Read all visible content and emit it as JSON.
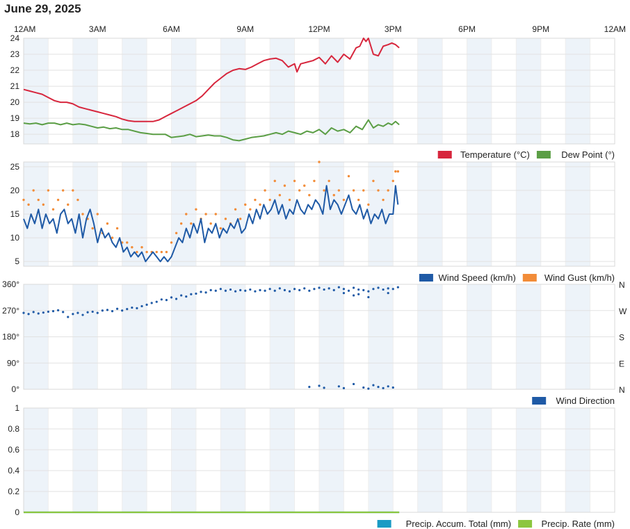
{
  "page": {
    "title": "June 29, 2025"
  },
  "time_axis": {
    "labels": [
      "12AM",
      "3AM",
      "6AM",
      "9AM",
      "12PM",
      "3PM",
      "6PM",
      "9PM",
      "12AM"
    ]
  },
  "colors": {
    "temperature": "#d7263d",
    "dew_point": "#5b9e45",
    "wind_speed": "#1f5aa6",
    "wind_gust": "#f28c38",
    "wind_direction": "#1f5aa6",
    "precip_total": "#1a9bc4",
    "precip_rate": "#8cc63f",
    "band": "#edf3f9",
    "grid": "#e2e2e2"
  },
  "chart_data": [
    {
      "type": "line",
      "x_unit": "hours since 12AM",
      "xlim": [
        0,
        24
      ],
      "ylim": [
        17.4,
        24
      ],
      "y_ticks": [
        "18",
        "19",
        "20",
        "21",
        "22",
        "23",
        "24"
      ],
      "series": [
        {
          "name": "Temperature (°C)",
          "x": [
            0,
            0.25,
            0.5,
            0.75,
            1,
            1.25,
            1.5,
            1.75,
            2,
            2.25,
            2.5,
            2.75,
            3,
            3.25,
            3.5,
            3.75,
            4,
            4.25,
            4.5,
            4.75,
            5,
            5.25,
            5.5,
            5.75,
            6,
            6.25,
            6.5,
            6.75,
            7,
            7.25,
            7.5,
            7.75,
            8,
            8.25,
            8.5,
            8.75,
            9,
            9.25,
            9.5,
            9.75,
            10,
            10.25,
            10.5,
            10.75,
            11,
            11.1,
            11.25,
            11.5,
            11.75,
            12,
            12.25,
            12.5,
            12.75,
            13,
            13.25,
            13.5,
            13.65,
            13.8,
            13.9,
            14,
            14.2,
            14.4,
            14.6,
            14.8,
            14.95,
            15.1,
            15.25
          ],
          "values": [
            20.8,
            20.7,
            20.6,
            20.5,
            20.3,
            20.1,
            20.0,
            20.0,
            19.9,
            19.7,
            19.6,
            19.5,
            19.4,
            19.3,
            19.2,
            19.1,
            18.95,
            18.85,
            18.8,
            18.8,
            18.8,
            18.8,
            18.9,
            19.1,
            19.3,
            19.5,
            19.7,
            19.9,
            20.1,
            20.4,
            20.8,
            21.2,
            21.5,
            21.8,
            22.0,
            22.1,
            22.05,
            22.2,
            22.4,
            22.6,
            22.7,
            22.75,
            22.6,
            22.2,
            22.4,
            21.9,
            22.4,
            22.5,
            22.6,
            22.8,
            22.4,
            22.9,
            22.5,
            23.0,
            22.7,
            23.4,
            23.5,
            24.0,
            23.8,
            24.0,
            23.0,
            22.9,
            23.5,
            23.6,
            23.7,
            23.6,
            23.4
          ]
        },
        {
          "name": "Dew Point (°)",
          "x": [
            0,
            0.25,
            0.5,
            0.75,
            1,
            1.25,
            1.5,
            1.75,
            2,
            2.25,
            2.5,
            2.75,
            3,
            3.25,
            3.5,
            3.75,
            4,
            4.25,
            4.5,
            4.75,
            5,
            5.25,
            5.5,
            5.75,
            6,
            6.25,
            6.5,
            6.75,
            7,
            7.25,
            7.5,
            7.75,
            8,
            8.25,
            8.5,
            8.75,
            9,
            9.25,
            9.5,
            9.75,
            10,
            10.25,
            10.5,
            10.75,
            11,
            11.25,
            11.5,
            11.75,
            12,
            12.25,
            12.5,
            12.75,
            13,
            13.25,
            13.5,
            13.75,
            14,
            14.2,
            14.4,
            14.6,
            14.8,
            14.95,
            15.1,
            15.25
          ],
          "values": [
            18.7,
            18.65,
            18.7,
            18.6,
            18.7,
            18.7,
            18.6,
            18.7,
            18.6,
            18.65,
            18.6,
            18.5,
            18.4,
            18.45,
            18.35,
            18.4,
            18.3,
            18.3,
            18.2,
            18.1,
            18.05,
            18.0,
            18.0,
            18.0,
            17.8,
            17.85,
            17.9,
            18.0,
            17.85,
            17.9,
            17.95,
            17.9,
            17.9,
            17.8,
            17.65,
            17.6,
            17.7,
            17.8,
            17.85,
            17.9,
            18.0,
            18.1,
            18.0,
            18.2,
            18.1,
            18.0,
            18.2,
            18.1,
            18.3,
            18.0,
            18.4,
            18.2,
            18.3,
            18.1,
            18.5,
            18.3,
            18.9,
            18.4,
            18.6,
            18.5,
            18.7,
            18.6,
            18.8,
            18.6
          ]
        }
      ]
    },
    {
      "type": "line",
      "x_unit": "hours since 12AM",
      "xlim": [
        0,
        24
      ],
      "ylim": [
        4,
        26
      ],
      "y_ticks": [
        "5",
        "10",
        "15",
        "20",
        "25"
      ],
      "series": [
        {
          "name": "Wind Speed (km/h)",
          "x": [
            0,
            0.15,
            0.3,
            0.45,
            0.6,
            0.75,
            0.9,
            1.05,
            1.2,
            1.35,
            1.5,
            1.65,
            1.8,
            1.95,
            2.1,
            2.25,
            2.4,
            2.55,
            2.7,
            2.85,
            3,
            3.15,
            3.3,
            3.45,
            3.6,
            3.75,
            3.9,
            4.05,
            4.2,
            4.35,
            4.5,
            4.65,
            4.8,
            4.95,
            5.1,
            5.25,
            5.4,
            5.55,
            5.7,
            5.85,
            6,
            6.15,
            6.3,
            6.45,
            6.6,
            6.75,
            6.9,
            7.05,
            7.2,
            7.35,
            7.5,
            7.65,
            7.8,
            7.95,
            8.1,
            8.25,
            8.4,
            8.55,
            8.7,
            8.85,
            9,
            9.15,
            9.3,
            9.45,
            9.6,
            9.75,
            9.9,
            10.05,
            10.2,
            10.35,
            10.5,
            10.65,
            10.8,
            10.95,
            11.1,
            11.25,
            11.4,
            11.55,
            11.7,
            11.85,
            12,
            12.15,
            12.3,
            12.45,
            12.6,
            12.75,
            12.9,
            13.05,
            13.2,
            13.35,
            13.5,
            13.65,
            13.8,
            13.95,
            14.1,
            14.25,
            14.4,
            14.55,
            14.7,
            14.85,
            15,
            15.1,
            15.2
          ],
          "values": [
            14,
            12,
            15,
            13,
            16,
            12,
            15,
            13,
            14,
            11,
            15,
            16,
            13,
            14,
            11,
            15,
            10,
            14,
            16,
            13,
            9,
            12,
            10,
            11,
            9,
            8,
            10,
            7,
            8,
            6,
            7,
            6,
            7,
            5,
            6,
            7,
            6,
            5,
            6,
            5,
            6,
            8,
            10,
            9,
            12,
            10,
            13,
            11,
            14,
            9,
            12,
            11,
            13,
            10,
            12,
            11,
            13,
            12,
            14,
            11,
            12,
            15,
            13,
            16,
            14,
            17,
            15,
            16,
            18,
            15,
            17,
            14,
            16,
            15,
            18,
            16,
            15,
            17,
            16,
            18,
            17,
            15,
            21,
            16,
            18,
            17,
            15,
            17,
            19,
            16,
            15,
            17,
            14,
            16,
            13,
            15,
            14,
            16,
            13,
            15,
            15,
            21,
            17
          ]
        },
        {
          "name": "Wind Gust (km/h)",
          "x": [
            0,
            0.2,
            0.4,
            0.6,
            0.8,
            1.0,
            1.2,
            1.4,
            1.6,
            1.8,
            2.0,
            2.2,
            2.4,
            2.6,
            2.8,
            3.0,
            3.2,
            3.4,
            3.6,
            3.8,
            4.0,
            4.2,
            4.4,
            4.6,
            4.8,
            5.0,
            5.2,
            5.4,
            5.6,
            5.8,
            6.0,
            6.2,
            6.4,
            6.6,
            6.8,
            7.0,
            7.2,
            7.4,
            7.6,
            7.8,
            8.0,
            8.2,
            8.4,
            8.6,
            8.8,
            9.0,
            9.2,
            9.4,
            9.6,
            9.8,
            10.0,
            10.2,
            10.4,
            10.6,
            10.8,
            11.0,
            11.2,
            11.4,
            11.6,
            11.8,
            12.0,
            12.2,
            12.4,
            12.6,
            12.8,
            13.0,
            13.2,
            13.4,
            13.6,
            13.8,
            14.0,
            14.2,
            14.4,
            14.6,
            14.8,
            15.0,
            15.1,
            15.2
          ],
          "values": [
            18,
            17,
            20,
            18,
            17,
            20,
            16,
            18,
            20,
            17,
            20,
            18,
            15,
            14,
            12,
            15,
            11,
            13,
            10,
            12,
            9,
            9,
            8,
            7,
            8,
            7,
            7,
            7,
            7,
            7,
            9,
            11,
            13,
            15,
            13,
            16,
            14,
            15,
            13,
            15,
            12,
            14,
            13,
            16,
            14,
            17,
            16,
            18,
            17,
            20,
            18,
            22,
            19,
            21,
            18,
            22,
            20,
            21,
            19,
            22,
            26,
            20,
            22,
            19,
            20,
            18,
            23,
            20,
            18,
            20,
            17,
            22,
            20,
            18,
            20,
            22,
            24,
            24
          ]
        }
      ]
    },
    {
      "type": "scatter",
      "x_unit": "hours since 12AM",
      "xlim": [
        0,
        24
      ],
      "ylim": [
        0,
        360
      ],
      "y_ticks": [
        "0°",
        "90°",
        "180°",
        "270°",
        "360°"
      ],
      "right_labels": [
        "N",
        "E",
        "S",
        "W",
        "N"
      ],
      "series": [
        {
          "name": "Wind Direction",
          "x": [
            0.0,
            0.2,
            0.4,
            0.6,
            0.8,
            1.0,
            1.2,
            1.4,
            1.6,
            1.8,
            2.0,
            2.2,
            2.4,
            2.6,
            2.8,
            3.0,
            3.2,
            3.4,
            3.6,
            3.8,
            4.0,
            4.2,
            4.4,
            4.6,
            4.8,
            5.0,
            5.2,
            5.4,
            5.6,
            5.8,
            6.0,
            6.2,
            6.4,
            6.6,
            6.8,
            7.0,
            7.2,
            7.4,
            7.6,
            7.8,
            8.0,
            8.2,
            8.4,
            8.6,
            8.8,
            9.0,
            9.2,
            9.4,
            9.6,
            9.8,
            10.0,
            10.2,
            10.4,
            10.6,
            10.8,
            11.0,
            11.2,
            11.4,
            11.6,
            11.8,
            12.0,
            12.2,
            12.4,
            12.6,
            12.8,
            13.0,
            13.2,
            13.4,
            13.6,
            13.8,
            14.0,
            14.2,
            14.4,
            14.6,
            14.8,
            15.0,
            15.2,
            11.6,
            12.0,
            12.2,
            12.8,
            13.0,
            13.4,
            13.8,
            14.0,
            14.2,
            14.4,
            14.6,
            14.8,
            15.0,
            13.0,
            13.4,
            13.6,
            14.0,
            14.8
          ],
          "values": [
            262,
            258,
            265,
            260,
            263,
            266,
            268,
            271,
            265,
            248,
            258,
            262,
            255,
            264,
            266,
            262,
            270,
            272,
            268,
            276,
            270,
            275,
            280,
            278,
            285,
            290,
            296,
            300,
            308,
            306,
            315,
            310,
            322,
            318,
            326,
            328,
            334,
            332,
            340,
            338,
            344,
            338,
            342,
            336,
            340,
            338,
            342,
            336,
            340,
            338,
            344,
            338,
            346,
            340,
            336,
            344,
            340,
            346,
            338,
            344,
            348,
            342,
            346,
            340,
            350,
            344,
            338,
            348,
            342,
            340,
            336,
            344,
            348,
            342,
            346,
            344,
            350,
            8,
            12,
            5,
            10,
            4,
            18,
            6,
            2,
            14,
            8,
            4,
            10,
            6,
            330,
            322,
            326,
            316,
            330
          ]
        }
      ]
    },
    {
      "type": "line",
      "x_unit": "hours since 12AM",
      "xlim": [
        0,
        24
      ],
      "ylim": [
        0,
        1
      ],
      "y_ticks": [
        "0",
        "0.2",
        "0.4",
        "0.6",
        "0.8",
        "1"
      ],
      "series": [
        {
          "name": "Precip. Accum. Total (mm)",
          "x": [
            0,
            15.25
          ],
          "values": [
            0,
            0
          ]
        },
        {
          "name": "Precip. Rate (mm)",
          "x": [
            0,
            15.25
          ],
          "values": [
            0,
            0
          ]
        }
      ]
    }
  ]
}
